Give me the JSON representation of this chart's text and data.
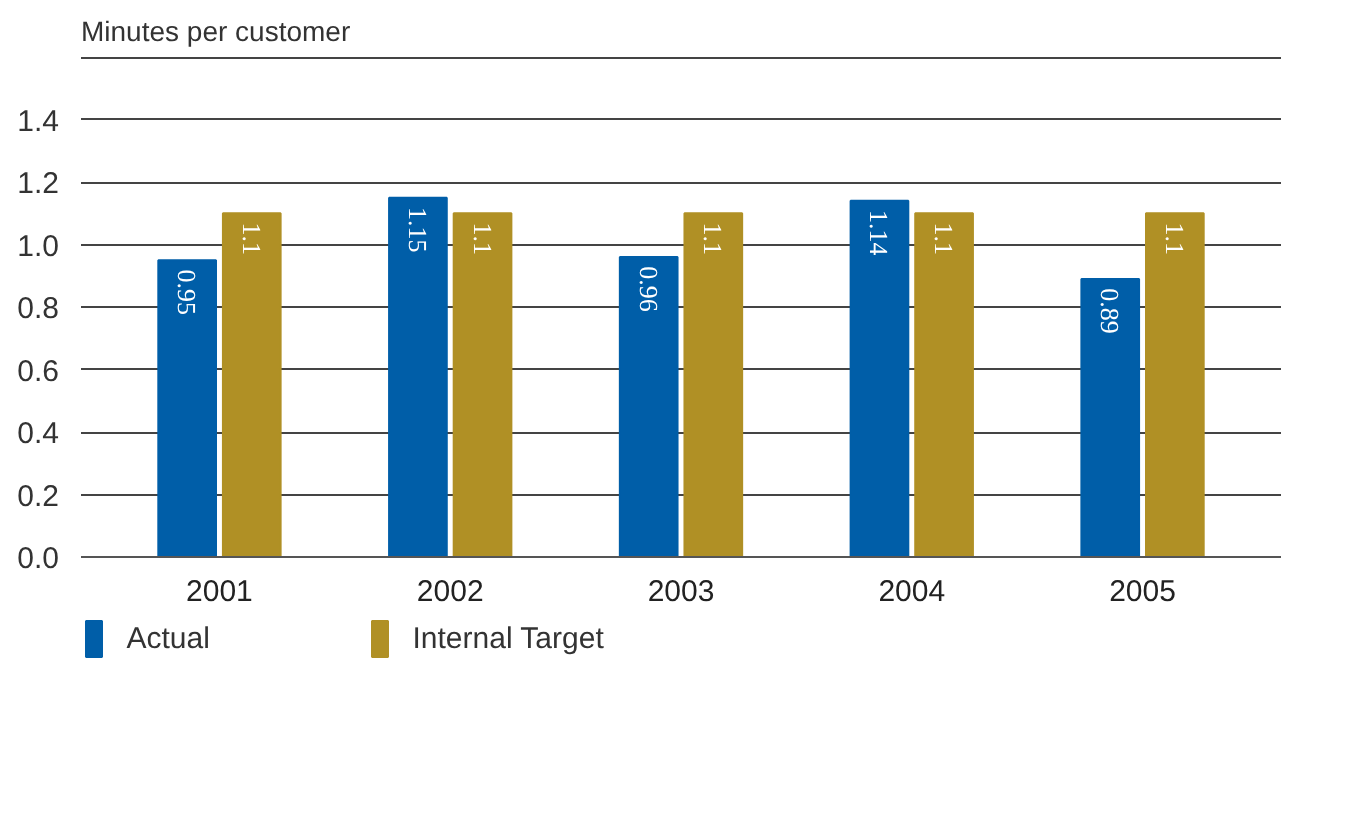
{
  "chart_data": {
    "type": "bar",
    "ylabel": "Minutes per customer",
    "categories": [
      "2001",
      "2002",
      "2003",
      "2004",
      "2005"
    ],
    "series": [
      {
        "name": "Actual",
        "color": "#005ea8",
        "values": [
          0.95,
          1.15,
          0.96,
          1.14,
          0.89
        ]
      },
      {
        "name": "Internal Target",
        "color": "#b09025",
        "values": [
          1.1,
          1.1,
          1.1,
          1.1,
          1.1
        ]
      }
    ],
    "ylim": [
      0,
      1.6
    ],
    "yticks": [
      {
        "value": 0,
        "label": "0.0"
      },
      0.2,
      0.4,
      0.6,
      0.8,
      {
        "value": 1,
        "label": "1.0"
      },
      1.2,
      1.4
    ],
    "grid": "y",
    "legend": "bottom",
    "data_labels": true
  }
}
